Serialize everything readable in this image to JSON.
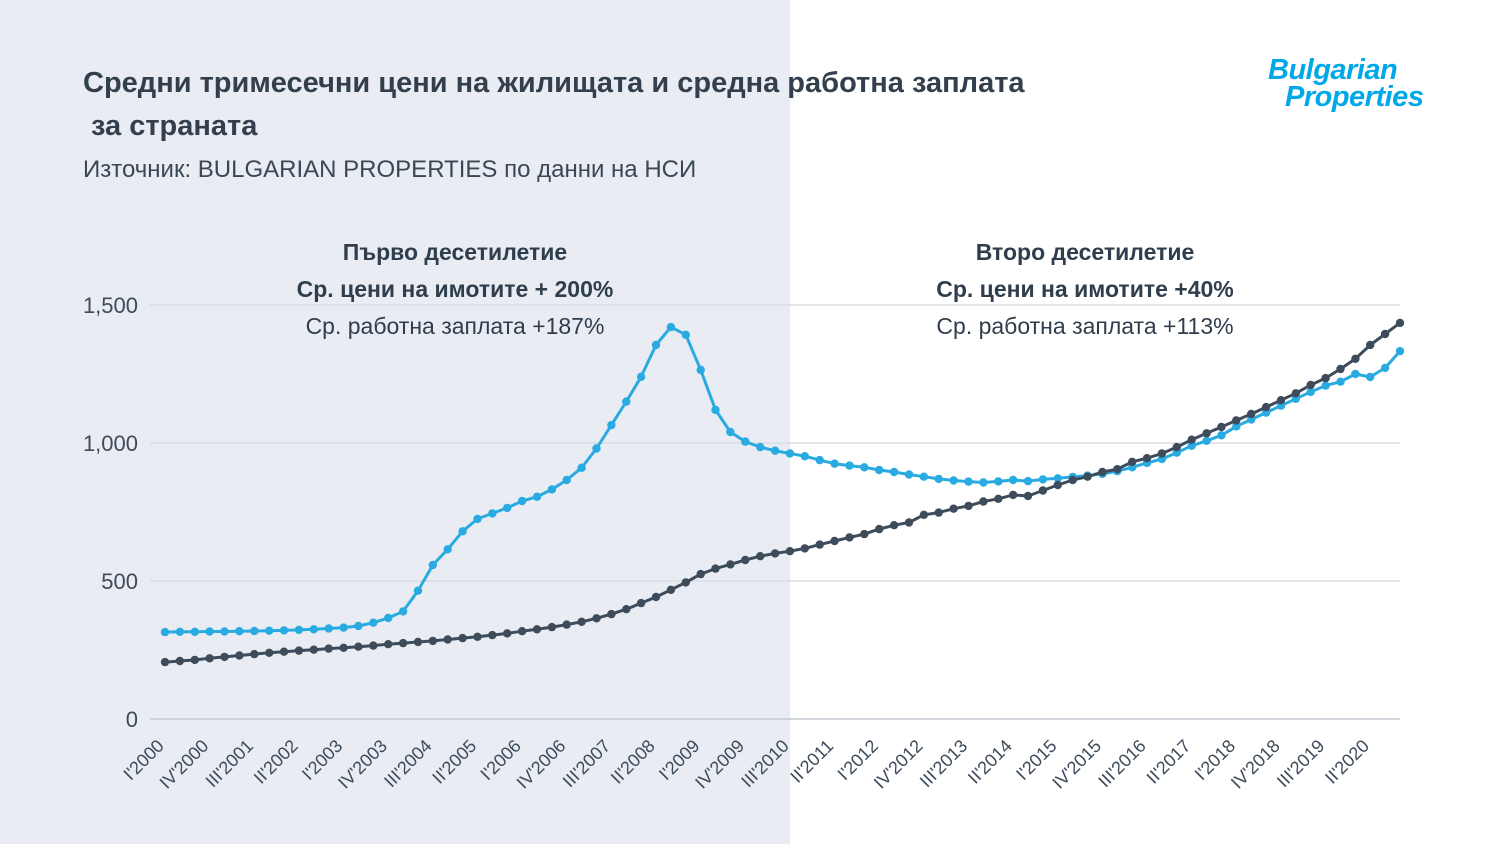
{
  "header": {
    "title_line1": "Средни тримесечни цени на жилищата и средна работна заплата",
    "title_line2": "за страната",
    "subtitle": "Източник: BULGARIAN PROPERTIES по данни на НСИ"
  },
  "logo": {
    "line1": "Bulgarian",
    "line2": "Properties"
  },
  "annotations": {
    "first_decade": {
      "title": "Първо десетилетие",
      "prices": "Ср. цени на имотите + 200%",
      "salary": "Ср. работна заплата +187%"
    },
    "second_decade": {
      "title": "Второ десетилетие",
      "prices": "Ср. цени на имотите +40%",
      "salary": "Ср. работна заплата +113%"
    }
  },
  "colors": {
    "logo_blue": "#00a8e8",
    "prices_line": "#29abe2",
    "salary_line": "#3d4b5b",
    "background_left": "#e9edf3",
    "background_right": "#ffffff",
    "text_dark": "#333f4c",
    "gridline": "#d8dce3"
  },
  "chart_data": {
    "type": "line",
    "title": "Средни тримесечни цени на жилищата и средна работна заплата за страната",
    "source": "Източник: BULGARIAN PROPERTIES по данни на НСИ",
    "grid": "horizontal",
    "legend_position": "none",
    "x_label_rotation": -45,
    "x_tick_every": 3,
    "x_tick_labels": [
      "I'2000",
      "IV'2000",
      "III'2001",
      "II'2002",
      "I'2003",
      "IV'2003",
      "III'2004",
      "II'2005",
      "I'2006",
      "IV'2006",
      "III'2007",
      "II'2008",
      "I'2009",
      "IV'2009",
      "III'2010",
      "II'2011",
      "I'2012",
      "IV'2012",
      "III'2013",
      "II'2014",
      "I'2015",
      "IV'2015",
      "III'2016",
      "II'2017",
      "I'2018",
      "IV'2018",
      "III'2019",
      "II'2020"
    ],
    "y_ticks": [
      0,
      500,
      1000,
      1500
    ],
    "y_tick_labels": [
      "0",
      "500",
      "1,000",
      "1,500"
    ],
    "ylim": [
      0,
      1550
    ],
    "series": [
      {
        "id": "property-prices",
        "name": "Ср. цени на имотите",
        "color": "#29abe2",
        "values": [
          315,
          316,
          316,
          317,
          317,
          318,
          319,
          320,
          321,
          323,
          325,
          328,
          331,
          337,
          349,
          366,
          390,
          465,
          558,
          615,
          680,
          725,
          745,
          765,
          790,
          805,
          832,
          866,
          910,
          980,
          1065,
          1150,
          1240,
          1355,
          1420,
          1392,
          1265,
          1120,
          1040,
          1005,
          985,
          972,
          962,
          952,
          938,
          925,
          918,
          912,
          902,
          895,
          886,
          878,
          870,
          864,
          860,
          857,
          861,
          866,
          862,
          868,
          872,
          877,
          882,
          888,
          898,
          912,
          928,
          942,
          965,
          990,
          1008,
          1028,
          1060,
          1085,
          1110,
          1135,
          1160,
          1185,
          1208,
          1222,
          1250,
          1239,
          1272,
          1333
        ]
      },
      {
        "id": "salary",
        "name": "Ср. работна заплата",
        "color": "#3d4b5b",
        "values": [
          206,
          210,
          214,
          220,
          225,
          230,
          235,
          240,
          244,
          248,
          251,
          255,
          258,
          262,
          266,
          271,
          275,
          279,
          283,
          288,
          293,
          298,
          304,
          310,
          318,
          325,
          333,
          342,
          352,
          365,
          380,
          398,
          420,
          442,
          468,
          495,
          525,
          545,
          560,
          576,
          590,
          600,
          608,
          618,
          632,
          645,
          658,
          670,
          688,
          702,
          712,
          740,
          748,
          762,
          772,
          788,
          798,
          812,
          808,
          828,
          848,
          866,
          878,
          895,
          905,
          932,
          945,
          962,
          985,
          1012,
          1035,
          1058,
          1082,
          1105,
          1130,
          1155,
          1180,
          1210,
          1235,
          1268,
          1305,
          1355,
          1395,
          1435
        ]
      }
    ]
  }
}
